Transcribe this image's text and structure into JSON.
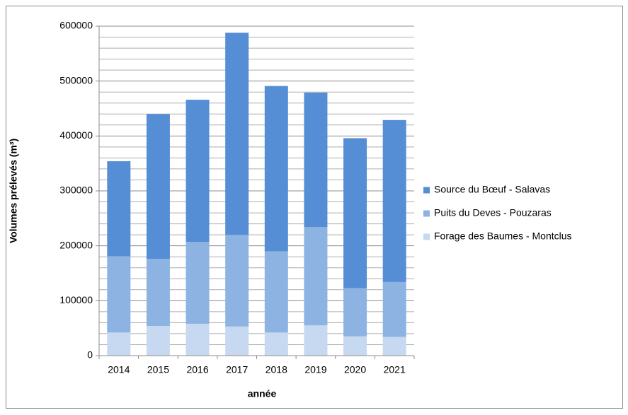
{
  "chart_data": {
    "type": "stacked_bar",
    "x_label": "année",
    "y_label": "Volumes prélevés (m³)",
    "categories": [
      "2014",
      "2015",
      "2016",
      "2017",
      "2018",
      "2019",
      "2020",
      "2021"
    ],
    "series": [
      {
        "name": "Forage des Baumes - Montclus",
        "color": "#c6d9f1",
        "values": [
          42000,
          54000,
          58000,
          53000,
          42000,
          55000,
          35000,
          34000
        ]
      },
      {
        "name": "Puits du Deves - Pouzaras",
        "color": "#8db3e2",
        "values": [
          139000,
          122000,
          149000,
          167000,
          148000,
          179000,
          88000,
          100000
        ]
      },
      {
        "name": "Source du Bœuf - Salavas",
        "color": "#558ed5",
        "values": [
          173000,
          264000,
          259000,
          368000,
          301000,
          245000,
          273000,
          295000
        ]
      }
    ],
    "ylim": [
      0,
      600000
    ],
    "yticks": [
      0,
      100000,
      200000,
      300000,
      400000,
      500000,
      600000
    ],
    "yminorticks": [
      20000,
      40000,
      60000,
      80000,
      120000,
      140000,
      160000,
      180000,
      220000,
      240000,
      260000,
      280000,
      320000,
      340000,
      360000,
      380000,
      420000,
      440000,
      460000,
      480000,
      520000,
      540000,
      560000,
      580000
    ],
    "grid": true,
    "legend": "right"
  }
}
